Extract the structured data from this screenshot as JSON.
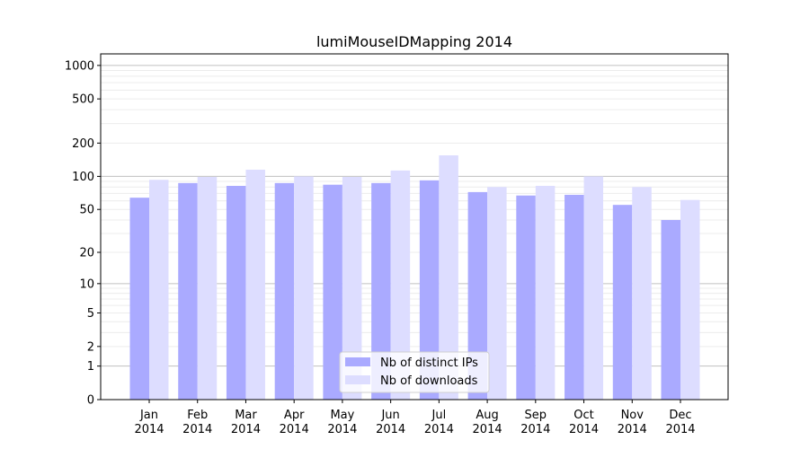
{
  "chart_data": {
    "type": "bar",
    "title": "lumiMouseIDMapping 2014",
    "xlabel": "",
    "ylabel": "",
    "yscale": "symlog",
    "ylim": [
      0,
      1270
    ],
    "grid": true,
    "legend_position": "bottom-center",
    "categories": [
      "Jan\n2014",
      "Feb\n2014",
      "Mar\n2014",
      "Apr\n2014",
      "May\n2014",
      "Jun\n2014",
      "Jul\n2014",
      "Aug\n2014",
      "Sep\n2014",
      "Oct\n2014",
      "Nov\n2014",
      "Dec\n2014"
    ],
    "yticks": [
      0,
      1,
      2,
      5,
      10,
      20,
      50,
      100,
      200,
      500,
      1000
    ],
    "ytick_labels": [
      "0",
      "1",
      "2",
      "5",
      "10",
      "20",
      "50",
      "100",
      "200",
      "500",
      "1000"
    ],
    "series": [
      {
        "name": "Nb of distinct IPs",
        "color": "#aaaaff",
        "values": [
          64,
          87,
          82,
          87,
          84,
          87,
          92,
          72,
          67,
          68,
          55,
          40
        ]
      },
      {
        "name": "Nb of downloads",
        "color": "#ddddff",
        "values": [
          93,
          99,
          115,
          100,
          99,
          113,
          155,
          80,
          82,
          100,
          80,
          61
        ]
      }
    ]
  }
}
